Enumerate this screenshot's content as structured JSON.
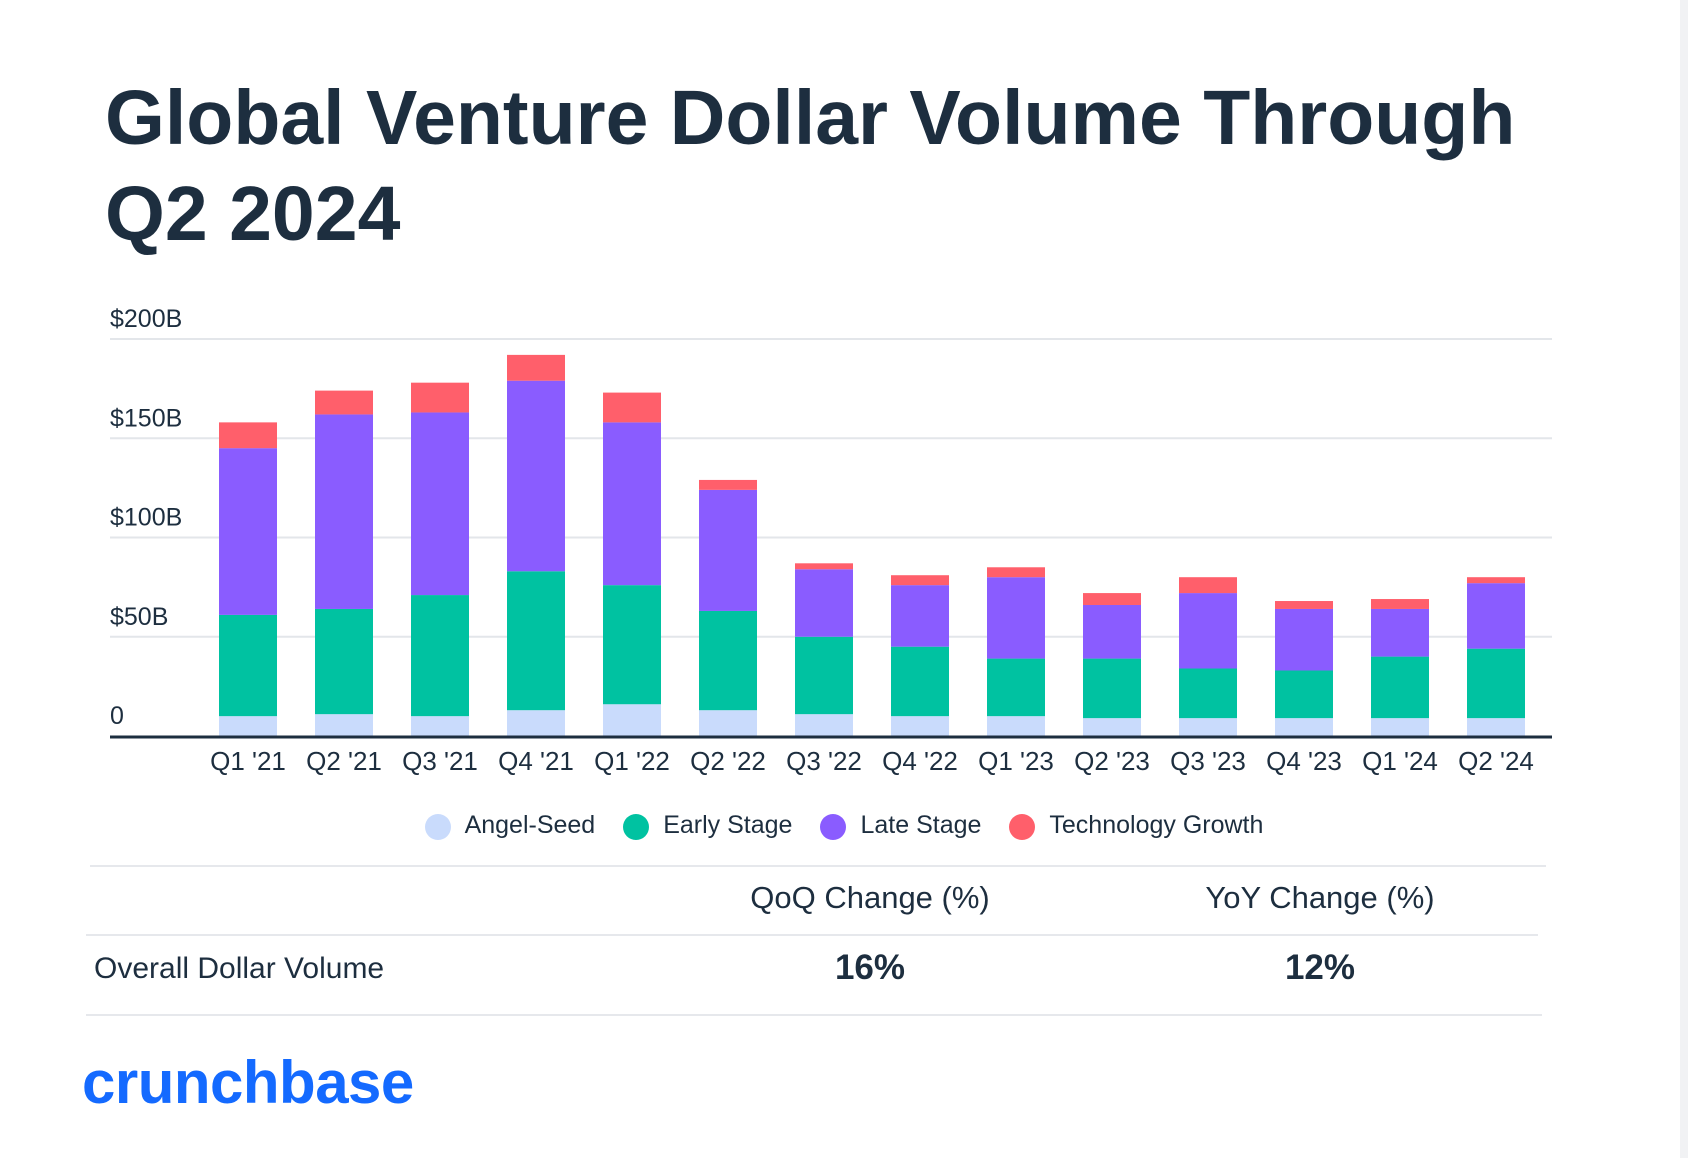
{
  "title": "Global Venture Dollar Volume Through Q2 2024",
  "chart_data": {
    "type": "bar",
    "stacked": true,
    "title": "Global Venture Dollar Volume Through Q2 2024",
    "xlabel": "",
    "ylabel": "",
    "ylim": [
      0,
      200
    ],
    "yticks": [
      0,
      50,
      100,
      150,
      200
    ],
    "ytick_labels": [
      "0",
      "$50B",
      "$100B",
      "$150B",
      "$200B"
    ],
    "grid": true,
    "legend_position": "bottom",
    "categories": [
      "Q1 '21",
      "Q2 '21",
      "Q3 '21",
      "Q4 '21",
      "Q1 '22",
      "Q2 '22",
      "Q3 '22",
      "Q4 '22",
      "Q1 '23",
      "Q2 '23",
      "Q3 '23",
      "Q4 '23",
      "Q1 '24",
      "Q2 '24"
    ],
    "series": [
      {
        "name": "Angel-Seed",
        "color": "#c9dbfc",
        "values": [
          10,
          11,
          10,
          13,
          16,
          13,
          11,
          10,
          10,
          9,
          9,
          9,
          9,
          9
        ]
      },
      {
        "name": "Early Stage",
        "color": "#00c2a1",
        "values": [
          51,
          53,
          61,
          70,
          60,
          50,
          39,
          35,
          29,
          30,
          25,
          24,
          31,
          35
        ]
      },
      {
        "name": "Late Stage",
        "color": "#8a5cff",
        "values": [
          84,
          98,
          92,
          96,
          82,
          61,
          34,
          31,
          41,
          27,
          38,
          31,
          24,
          33
        ]
      },
      {
        "name": "Technology Growth",
        "color": "#ff5f6b",
        "values": [
          13,
          12,
          15,
          13,
          15,
          5,
          3,
          5,
          5,
          6,
          8,
          4,
          5,
          3
        ]
      }
    ]
  },
  "table": {
    "headers": [
      "QoQ Change (%)",
      "YoY Change (%)"
    ],
    "row_label": "Overall Dollar Volume",
    "values": [
      "16%",
      "12%"
    ]
  },
  "logo": "crunchbase",
  "colors": {
    "text": "#1d2e3f",
    "grid": "#e3e6ea",
    "axis": "#1d2e3f",
    "logo": "#146aff"
  }
}
